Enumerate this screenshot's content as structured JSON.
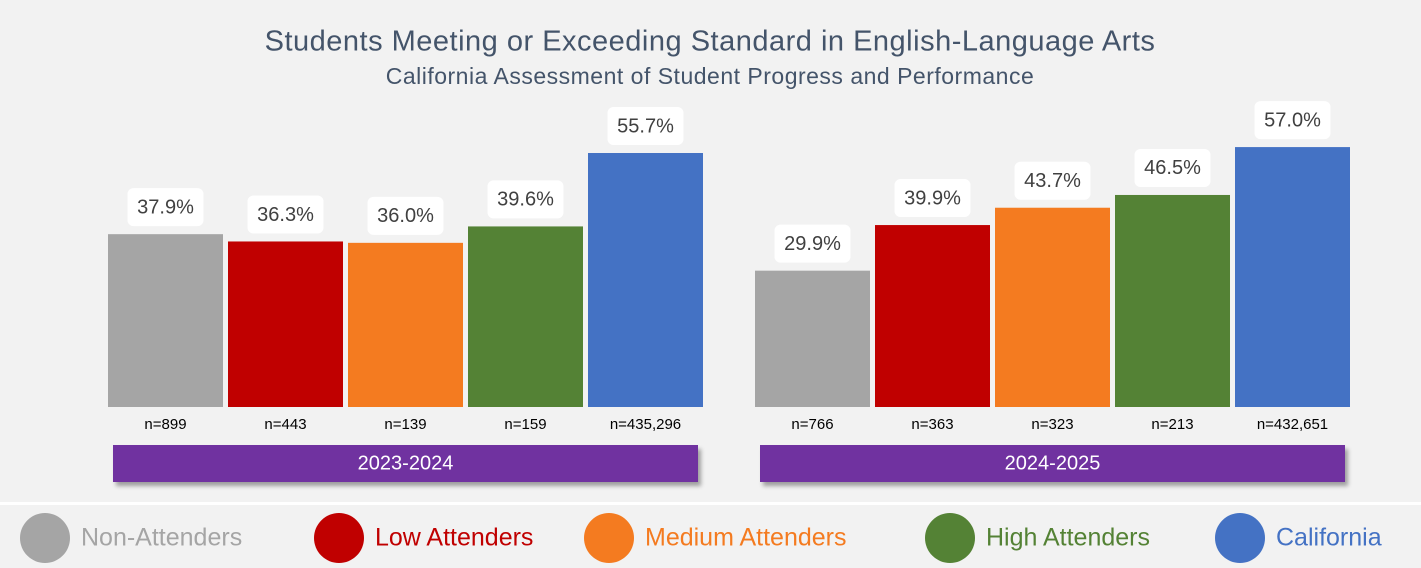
{
  "chart_data": {
    "type": "bar",
    "title": "Students Meeting or Exceeding Standard in English-Language Arts",
    "subtitle": "California Assessment of Student Progress and Performance",
    "categories": [
      "2023-2024",
      "2024-2025"
    ],
    "series": [
      {
        "name": "Non-Attenders",
        "color": "#a5a5a5",
        "values": [
          37.9,
          29.9
        ],
        "value_labels": [
          "37.9%",
          "29.9%"
        ],
        "n_labels": [
          "n=899",
          "n=766"
        ]
      },
      {
        "name": "Low Attenders",
        "color": "#c00000",
        "values": [
          36.3,
          39.9
        ],
        "value_labels": [
          "36.3%",
          "39.9%"
        ],
        "n_labels": [
          "n=443",
          "n=363"
        ]
      },
      {
        "name": "Medium Attenders",
        "color": "#f47b20",
        "values": [
          36.0,
          43.7
        ],
        "value_labels": [
          "36.0%",
          "43.7%"
        ],
        "n_labels": [
          "n=139",
          "n=323"
        ]
      },
      {
        "name": "High Attenders",
        "color": "#548235",
        "values": [
          39.6,
          46.5
        ],
        "value_labels": [
          "39.6%",
          "46.5%"
        ],
        "n_labels": [
          "n=159",
          "n=213"
        ]
      },
      {
        "name": "California",
        "color": "#4472c4",
        "values": [
          55.7,
          57.0
        ],
        "value_labels": [
          "55.7%",
          "57.0%"
        ],
        "n_labels": [
          "n=435,296",
          "n=432,651"
        ]
      }
    ],
    "legend": "bottom"
  }
}
